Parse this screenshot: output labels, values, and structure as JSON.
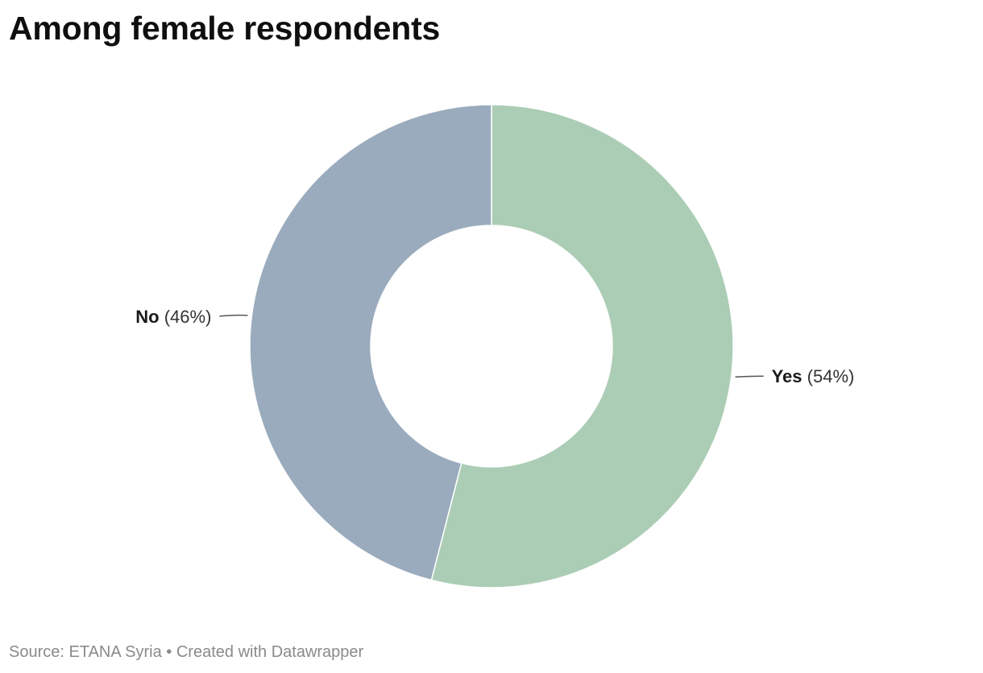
{
  "chart_data": {
    "type": "pie",
    "variant": "donut",
    "title": "Among female respondents",
    "categories": [
      "Yes",
      "No"
    ],
    "values": [
      54,
      46
    ],
    "value_suffix": "%",
    "colors": [
      "#abcdb5",
      "#9aabbd"
    ],
    "start_angle_deg": 0,
    "direction": "clockwise",
    "legend": "none"
  },
  "footer": {
    "source_label": "Source:",
    "source": "ETANA Syria",
    "separator": "•",
    "credit": "Created with Datawrapper"
  }
}
